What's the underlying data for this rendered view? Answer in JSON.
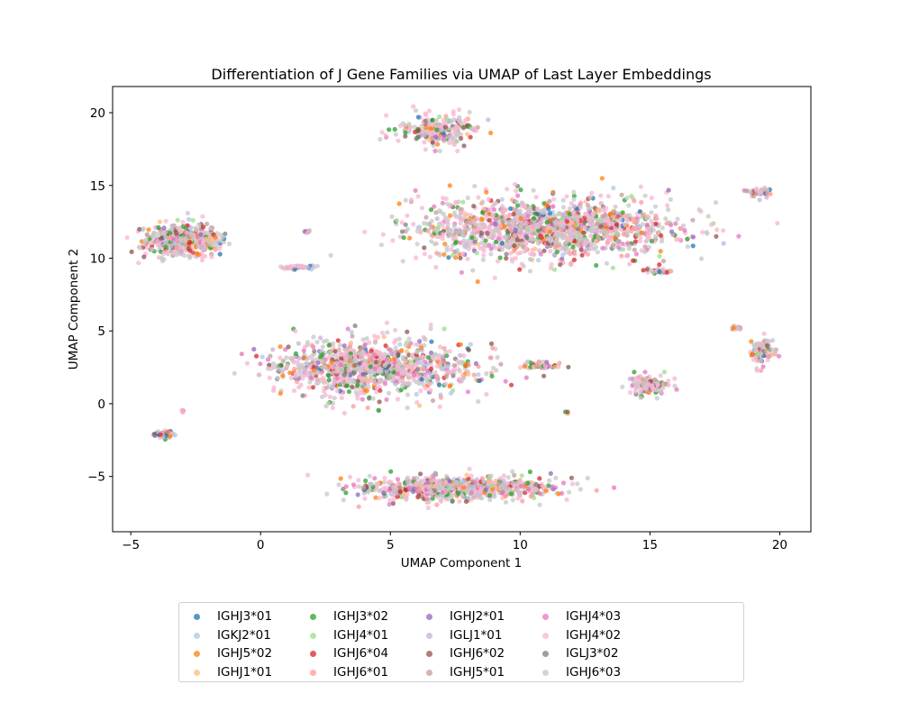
{
  "chart_data": {
    "type": "scatter",
    "title": "Differentiation of J Gene Families via UMAP of Last Layer Embeddings",
    "xlabel": "UMAP Component 1",
    "ylabel": "UMAP Component 2",
    "xlim": [
      -5.7,
      21.2
    ],
    "ylim": [
      -8.8,
      21.8
    ],
    "xticks": [
      -5,
      0,
      5,
      10,
      15,
      20
    ],
    "yticks": [
      -5,
      0,
      5,
      10,
      15,
      20
    ],
    "legend_position": "bottom-center",
    "grid": false,
    "series": [
      {
        "name": "IGHJ3*01",
        "color": "#1f77b4"
      },
      {
        "name": "IGKJ2*01",
        "color": "#aec7e8"
      },
      {
        "name": "IGHJ5*02",
        "color": "#ff7f0e"
      },
      {
        "name": "IGHJ1*01",
        "color": "#ffbb78"
      },
      {
        "name": "IGHJ3*02",
        "color": "#2ca02c"
      },
      {
        "name": "IGHJ4*01",
        "color": "#98df8a"
      },
      {
        "name": "IGHJ6*04",
        "color": "#d62728"
      },
      {
        "name": "IGHJ6*01",
        "color": "#ff9896"
      },
      {
        "name": "IGHJ2*01",
        "color": "#9467bd"
      },
      {
        "name": "IGLJ1*01",
        "color": "#c5b0d5"
      },
      {
        "name": "IGHJ6*02",
        "color": "#8c564b"
      },
      {
        "name": "IGHJ5*01",
        "color": "#c49c94"
      },
      {
        "name": "IGHJ4*03",
        "color": "#e377c2"
      },
      {
        "name": "IGHJ4*02",
        "color": "#f7b6d2"
      },
      {
        "name": "IGLJ3*02",
        "color": "#7f7f7f"
      },
      {
        "name": "IGHJ6*03",
        "color": "#c7c7c7"
      }
    ],
    "clusters": [
      {
        "cx": -3.0,
        "cy": 11.2,
        "rx": 1.5,
        "ry": 1.2,
        "n": 520
      },
      {
        "cx": 6.8,
        "cy": 18.8,
        "rx": 1.5,
        "ry": 1.2,
        "n": 260
      },
      {
        "cx": 11.0,
        "cy": 12.0,
        "rx": 5.0,
        "ry": 2.4,
        "n": 1500
      },
      {
        "cx": 4.3,
        "cy": 2.5,
        "rx": 4.0,
        "ry": 2.1,
        "n": 1100
      },
      {
        "cx": 7.5,
        "cy": -5.8,
        "rx": 3.9,
        "ry": 0.9,
        "n": 800
      },
      {
        "cx": 15.0,
        "cy": 1.3,
        "rx": 0.8,
        "ry": 0.7,
        "n": 160
      },
      {
        "cx": 19.3,
        "cy": 3.6,
        "rx": 0.45,
        "ry": 1.0,
        "n": 90
      },
      {
        "cx": 19.2,
        "cy": 14.5,
        "rx": 0.45,
        "ry": 0.35,
        "n": 50
      },
      {
        "cx": -3.7,
        "cy": -2.1,
        "rx": 0.4,
        "ry": 0.25,
        "n": 55
      },
      {
        "cx": 1.5,
        "cy": 9.4,
        "rx": 0.6,
        "ry": 0.2,
        "n": 40
      },
      {
        "cx": 10.7,
        "cy": 2.6,
        "rx": 0.7,
        "ry": 0.3,
        "n": 55
      },
      {
        "cx": 15.3,
        "cy": 9.1,
        "rx": 0.5,
        "ry": 0.2,
        "n": 35
      },
      {
        "cx": 18.3,
        "cy": 5.2,
        "rx": 0.2,
        "ry": 0.2,
        "n": 12
      },
      {
        "cx": 1.8,
        "cy": 11.8,
        "rx": 0.15,
        "ry": 0.12,
        "n": 8
      },
      {
        "cx": -3.0,
        "cy": -0.5,
        "rx": 0.1,
        "ry": 0.12,
        "n": 5
      },
      {
        "cx": 11.8,
        "cy": -0.6,
        "rx": 0.08,
        "ry": 0.08,
        "n": 3
      }
    ]
  }
}
